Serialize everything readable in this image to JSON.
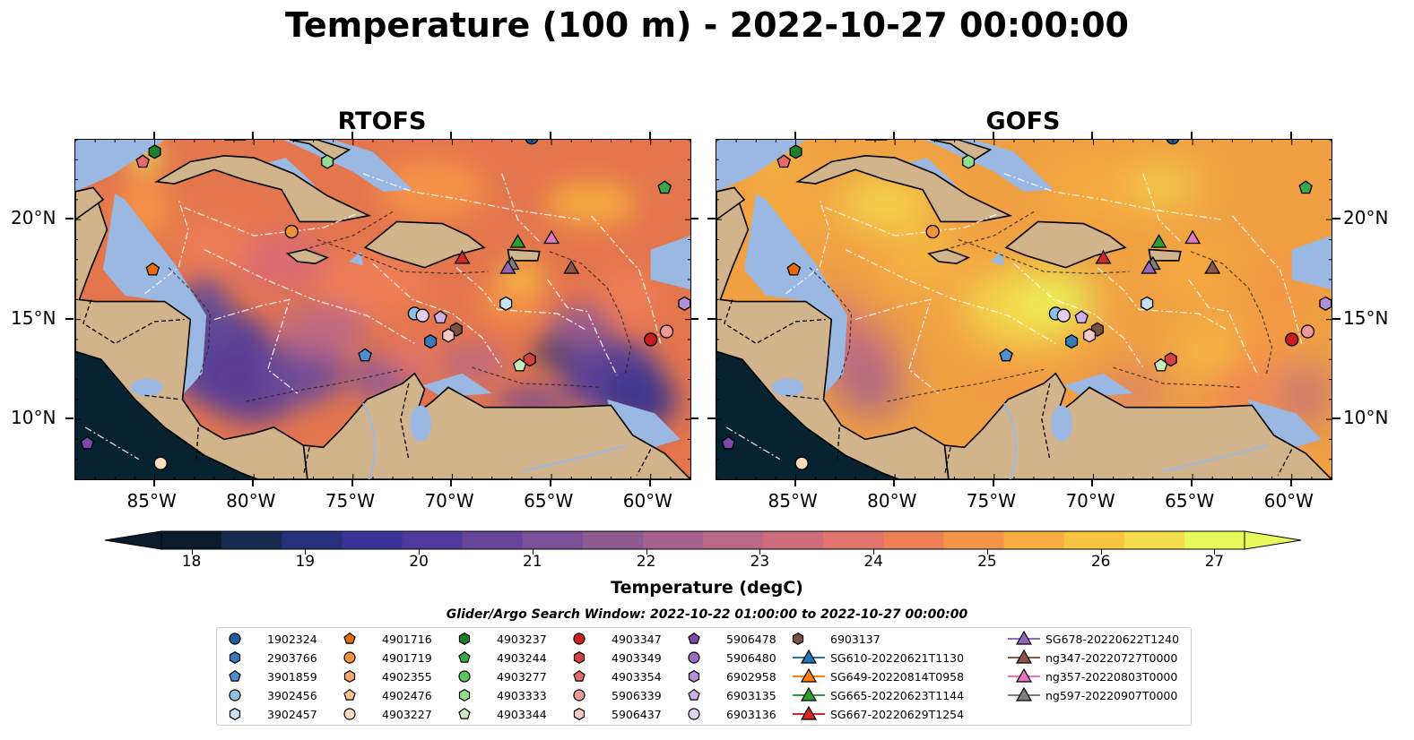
{
  "title": "Temperature (100 m) - 2022-10-27 00:00:00",
  "panels": [
    {
      "title": "RTOFS",
      "key": "rtofs"
    },
    {
      "title": "GOFS",
      "key": "gofs"
    }
  ],
  "map_extent": {
    "lon_min": -89,
    "lon_max": -58,
    "lat_min": 7,
    "lat_max": 24
  },
  "lon_ticks": [
    "85°W",
    "80°W",
    "75°W",
    "70°W",
    "65°W",
    "60°W"
  ],
  "lon_tick_values": [
    -85,
    -80,
    -75,
    -70,
    -65,
    -60
  ],
  "lat_ticks": [
    "20°N",
    "15°N",
    "10°N"
  ],
  "lat_tick_values": [
    20,
    15,
    10
  ],
  "colorbar": {
    "label": "Temperature (degC)",
    "ticks": [
      "18",
      "19",
      "20",
      "21",
      "22",
      "23",
      "24",
      "25",
      "26",
      "27"
    ],
    "min": 18,
    "max": 27,
    "extend": "both",
    "colormap": "thermal",
    "colors": [
      "#0a1c2c",
      "#152a4c",
      "#27307a",
      "#3a349a",
      "#4f3a9c",
      "#66469a",
      "#7a5096",
      "#8e5a92",
      "#a4618c",
      "#b96886",
      "#cf6d7c",
      "#e1746c",
      "#ee8058",
      "#f59547",
      "#f7ad3f",
      "#f7c541",
      "#f4dc4b",
      "#e8fa5b"
    ]
  },
  "legend": {
    "title": "Glider/Argo Search Window: 2022-10-22 01:00:00 to 2022-10-27 00:00:00",
    "columns": [
      [
        {
          "label": "1902324",
          "marker": "circle",
          "color": "#1f5c9a"
        },
        {
          "label": "2903766",
          "marker": "hexagon",
          "color": "#3a7ab8"
        },
        {
          "label": "3901859",
          "marker": "pentagon",
          "color": "#4f8ed0"
        },
        {
          "label": "3902456",
          "marker": "circle",
          "color": "#8fc1e6"
        },
        {
          "label": "3902457",
          "marker": "hexagon",
          "color": "#c4e2f5"
        }
      ],
      [
        {
          "label": "4901716",
          "marker": "pentagon",
          "color": "#e86a10"
        },
        {
          "label": "4901719",
          "marker": "circle",
          "color": "#f0923a"
        },
        {
          "label": "4902355",
          "marker": "hexagon",
          "color": "#f4aa68"
        },
        {
          "label": "4902476",
          "marker": "pentagon",
          "color": "#f8c490"
        },
        {
          "label": "4903227",
          "marker": "circle",
          "color": "#fbdcbc"
        }
      ],
      [
        {
          "label": "4903237",
          "marker": "hexagon",
          "color": "#1e7e2a"
        },
        {
          "label": "4903244",
          "marker": "pentagon",
          "color": "#3aa845"
        },
        {
          "label": "4903277",
          "marker": "circle",
          "color": "#5cc663"
        },
        {
          "label": "4903333",
          "marker": "hexagon",
          "color": "#93dc8e"
        },
        {
          "label": "4903344",
          "marker": "pentagon",
          "color": "#c8efb9"
        }
      ],
      [
        {
          "label": "4903347",
          "marker": "circle",
          "color": "#c81e1e"
        },
        {
          "label": "4903349",
          "marker": "hexagon",
          "color": "#d84040"
        },
        {
          "label": "4903354",
          "marker": "pentagon",
          "color": "#e46a6a"
        },
        {
          "label": "5906339",
          "marker": "circle",
          "color": "#f09a98"
        },
        {
          "label": "5906437",
          "marker": "hexagon",
          "color": "#f8c8c6"
        }
      ],
      [
        {
          "label": "5906478",
          "marker": "pentagon",
          "color": "#7a4aa8"
        },
        {
          "label": "5906480",
          "marker": "circle",
          "color": "#9a6cc4"
        },
        {
          "label": "6902958",
          "marker": "hexagon",
          "color": "#b48ed6"
        },
        {
          "label": "6903135",
          "marker": "pentagon",
          "color": "#ccb0e6"
        },
        {
          "label": "6903136",
          "marker": "circle",
          "color": "#e2d0f2"
        }
      ],
      [
        {
          "label": "6903137",
          "marker": "hexagon",
          "color": "#7a5040"
        },
        {
          "label": "SG610-20220621T1130",
          "marker": "triangle-line",
          "color": "#1f77b4"
        },
        {
          "label": "SG649-20220814T0958",
          "marker": "triangle-line",
          "color": "#ff7f0e"
        },
        {
          "label": "SG665-20220623T1144",
          "marker": "triangle-line",
          "color": "#2ca02c"
        },
        {
          "label": "SG667-20220629T1254",
          "marker": "triangle-line",
          "color": "#d62728"
        }
      ],
      [
        {
          "label": "SG678-20220622T1240",
          "marker": "triangle-line",
          "color": "#9467bd"
        },
        {
          "label": "ng347-20220727T0000",
          "marker": "triangle-line",
          "color": "#8c564b"
        },
        {
          "label": "ng357-20220803T0000",
          "marker": "triangle-line",
          "color": "#e377c2"
        },
        {
          "label": "ng597-20220907T0000",
          "marker": "triangle-line",
          "color": "#7f7f7f"
        }
      ]
    ]
  },
  "markers_on_map": [
    {
      "id": "4903237",
      "lon": -85.0,
      "lat": 23.4
    },
    {
      "id": "4903354",
      "lon": -85.6,
      "lat": 22.9
    },
    {
      "id": "4903333",
      "lon": -76.3,
      "lat": 22.9
    },
    {
      "id": "4903244",
      "lon": -59.3,
      "lat": 21.6
    },
    {
      "id": "4901719",
      "lon": -78.1,
      "lat": 19.4
    },
    {
      "id": "4901716",
      "lon": -85.1,
      "lat": 17.5
    },
    {
      "id": "SG665-20220623T1144",
      "lon": -66.7,
      "lat": 18.9
    },
    {
      "id": "ng357-20220803T0000",
      "lon": -65.0,
      "lat": 19.1
    },
    {
      "id": "SG667-20220629T1254",
      "lon": -69.5,
      "lat": 18.1
    },
    {
      "id": "ng597-20220907T0000",
      "lon": -67.0,
      "lat": 17.8
    },
    {
      "id": "SG678-20220622T1240",
      "lon": -67.2,
      "lat": 17.6
    },
    {
      "id": "ng347-20220727T0000",
      "lon": -64.0,
      "lat": 17.6
    },
    {
      "id": "3902457",
      "lon": -67.3,
      "lat": 15.8
    },
    {
      "id": "3902456",
      "lon": -71.9,
      "lat": 15.3
    },
    {
      "id": "6903136",
      "lon": -71.5,
      "lat": 15.2
    },
    {
      "id": "6903135",
      "lon": -70.6,
      "lat": 15.1
    },
    {
      "id": "6903137",
      "lon": -69.8,
      "lat": 14.5
    },
    {
      "id": "5906437",
      "lon": -70.2,
      "lat": 14.2
    },
    {
      "id": "2903766",
      "lon": -71.1,
      "lat": 13.9
    },
    {
      "id": "3901859",
      "lon": -74.4,
      "lat": 13.2
    },
    {
      "id": "4903349",
      "lon": -66.1,
      "lat": 13.0
    },
    {
      "id": "4903344",
      "lon": -66.6,
      "lat": 12.7
    },
    {
      "id": "4903347",
      "lon": -60.0,
      "lat": 14.0
    },
    {
      "id": "5906339",
      "lon": -59.2,
      "lat": 14.4
    },
    {
      "id": "6902958",
      "lon": -58.3,
      "lat": 15.8
    },
    {
      "id": "5906478",
      "lon": -88.4,
      "lat": 8.8
    },
    {
      "id": "4903227",
      "lon": -84.7,
      "lat": 7.8
    },
    {
      "id": "1902324",
      "lon": -66.0,
      "lat": 24.1
    }
  ]
}
